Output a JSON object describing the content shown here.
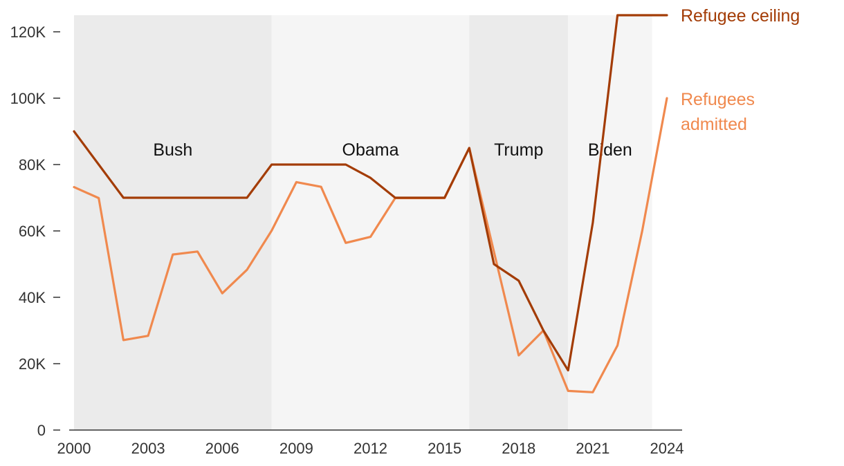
{
  "chart_data": {
    "type": "line",
    "title": "",
    "xlabel": "",
    "ylabel": "",
    "xlim": [
      2000,
      2024
    ],
    "ylim": [
      0,
      125000
    ],
    "x_ticks": [
      2000,
      2003,
      2006,
      2009,
      2012,
      2015,
      2018,
      2021,
      2024
    ],
    "x_tick_labels": [
      "2000",
      "2003",
      "2006",
      "2009",
      "2012",
      "2015",
      "2018",
      "2021",
      "2024"
    ],
    "y_ticks": [
      0,
      20000,
      40000,
      60000,
      80000,
      100000,
      120000
    ],
    "y_tick_labels": [
      "0",
      "20K",
      "40K",
      "60K",
      "80K",
      "100K",
      "120K"
    ],
    "eras": [
      {
        "name": "Bush",
        "start": 2000,
        "end": 2008,
        "color": "#ebebeb"
      },
      {
        "name": "Obama",
        "start": 2008,
        "end": 2016,
        "color": "#f5f5f5"
      },
      {
        "name": "Trump",
        "start": 2016,
        "end": 2020,
        "color": "#ebebeb"
      },
      {
        "name": "Biden",
        "start": 2020,
        "end": 2023.4,
        "color": "#f5f5f5"
      }
    ],
    "series": [
      {
        "name": "Refugee ceiling",
        "label_lines": [
          "Refugee ceiling"
        ],
        "color": "#a33c06",
        "x": [
          2000,
          2001,
          2002,
          2003,
          2004,
          2005,
          2006,
          2007,
          2008,
          2009,
          2010,
          2011,
          2012,
          2013,
          2014,
          2015,
          2016,
          2017,
          2018,
          2019,
          2020,
          2021,
          2022,
          2023,
          2024
        ],
        "values": [
          90000,
          80000,
          70000,
          70000,
          70000,
          70000,
          70000,
          70000,
          80000,
          80000,
          80000,
          80000,
          76000,
          70000,
          70000,
          70000,
          85000,
          50000,
          45000,
          30000,
          18000,
          62500,
          125000,
          125000,
          125000
        ]
      },
      {
        "name": "Refugees admitted",
        "label_lines": [
          "Refugees",
          "admitted"
        ],
        "color": "#f0894e",
        "x": [
          2000,
          2001,
          2002,
          2003,
          2004,
          2005,
          2006,
          2007,
          2008,
          2009,
          2010,
          2011,
          2012,
          2013,
          2014,
          2015,
          2016,
          2017,
          2018,
          2019,
          2020,
          2021,
          2022,
          2023,
          2024
        ],
        "values": [
          73200,
          69900,
          27100,
          28400,
          52900,
          53800,
          41200,
          48300,
          60100,
          74700,
          73300,
          56400,
          58200,
          69900,
          69900,
          69900,
          85000,
          53700,
          22500,
          30000,
          11800,
          11400,
          25500,
          60000,
          100000
        ]
      }
    ]
  }
}
